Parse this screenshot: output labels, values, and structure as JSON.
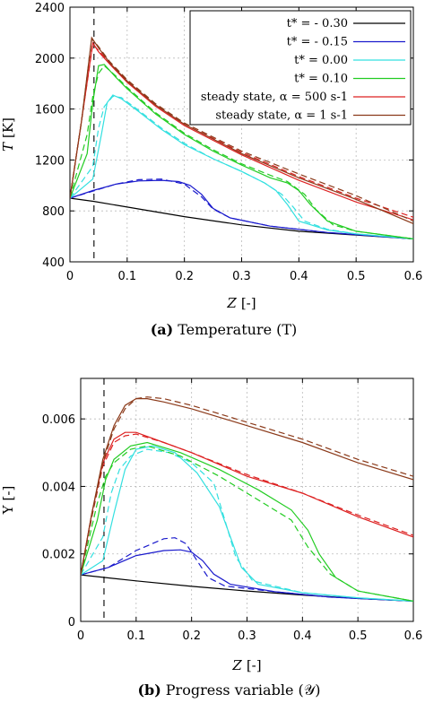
{
  "chart_data": [
    {
      "type": "line",
      "caption_tag": "(a)",
      "caption_text": "Temperature (T)",
      "xlabel": "Z",
      "xunit": "[-]",
      "ylabel": "T",
      "yunit": "[K]",
      "xlim": [
        0,
        0.6
      ],
      "ylim": [
        400,
        2400
      ],
      "xticks": [
        "0",
        "0.1",
        "0.2",
        "0.3",
        "0.4",
        "0.5",
        "0.6"
      ],
      "yticks": [
        "400",
        "800",
        "1200",
        "1600",
        "2000",
        "2400"
      ],
      "grid": true,
      "legend_position": "top-right",
      "vline": 0.042,
      "series": [
        {
          "name": "t* = - 0.30",
          "color": "#000000",
          "solid": {
            "x": [
              0,
              0.042,
              0.1,
              0.2,
              0.3,
              0.4,
              0.5,
              0.6
            ],
            "y": [
              900,
              875,
              830,
              755,
              690,
              640,
              610,
              580
            ]
          },
          "dashed": null
        },
        {
          "name": "t* = - 0.15",
          "color": "#1a1acc",
          "solid": {
            "x": [
              0,
              0.04,
              0.08,
              0.12,
              0.16,
              0.19,
              0.21,
              0.23,
              0.25,
              0.28,
              0.35,
              0.45,
              0.6
            ],
            "y": [
              900,
              960,
              1010,
              1035,
              1040,
              1030,
              1000,
              930,
              820,
              745,
              680,
              630,
              580
            ]
          },
          "dashed": {
            "x": [
              0,
              0.04,
              0.08,
              0.12,
              0.16,
              0.2,
              0.23,
              0.25,
              0.28,
              0.35,
              0.45,
              0.6
            ],
            "y": [
              900,
              955,
              1010,
              1045,
              1050,
              1010,
              910,
              815,
              745,
              680,
              630,
              580
            ]
          }
        },
        {
          "name": "t* = 0.00",
          "color": "#33e0e0",
          "solid": {
            "x": [
              0,
              0.04,
              0.055,
              0.065,
              0.075,
              0.09,
              0.12,
              0.16,
              0.2,
              0.25,
              0.3,
              0.34,
              0.36,
              0.38,
              0.4,
              0.45,
              0.5,
              0.6
            ],
            "y": [
              900,
              1050,
              1400,
              1650,
              1710,
              1680,
              1580,
              1440,
              1320,
              1210,
              1110,
              1020,
              960,
              850,
              720,
              650,
              620,
              580
            ]
          },
          "dashed": {
            "x": [
              0,
              0.04,
              0.05,
              0.06,
              0.075,
              0.09,
              0.12,
              0.16,
              0.2,
              0.25,
              0.3,
              0.34,
              0.37,
              0.39,
              0.41,
              0.45,
              0.5,
              0.6
            ],
            "y": [
              900,
              1150,
              1450,
              1620,
              1700,
              1690,
              1590,
              1450,
              1330,
              1210,
              1110,
              1020,
              930,
              830,
              720,
              655,
              620,
              580
            ]
          }
        },
        {
          "name": "t* = 0.10",
          "color": "#22cc22",
          "solid": {
            "x": [
              0,
              0.03,
              0.04,
              0.05,
              0.06,
              0.08,
              0.1,
              0.15,
              0.2,
              0.25,
              0.3,
              0.35,
              0.38,
              0.4,
              0.42,
              0.45,
              0.5,
              0.6
            ],
            "y": [
              900,
              1250,
              1650,
              1940,
              1950,
              1850,
              1760,
              1560,
              1400,
              1270,
              1160,
              1060,
              1020,
              960,
              850,
              720,
              640,
              580
            ]
          },
          "dashed": {
            "x": [
              0,
              0.03,
              0.04,
              0.05,
              0.06,
              0.08,
              0.1,
              0.15,
              0.2,
              0.25,
              0.3,
              0.35,
              0.38,
              0.41,
              0.43,
              0.46,
              0.5,
              0.6
            ],
            "y": [
              900,
              1400,
              1700,
              1880,
              1940,
              1860,
              1770,
              1570,
              1410,
              1280,
              1170,
              1080,
              1030,
              930,
              810,
              690,
              640,
              580
            ]
          }
        },
        {
          "name": "steady state, α = 500 s-1",
          "color": "#dd2222",
          "solid": {
            "x": [
              0,
              0.02,
              0.04,
              0.05,
              0.07,
              0.1,
              0.15,
              0.2,
              0.3,
              0.4,
              0.5,
              0.6
            ],
            "y": [
              900,
              1500,
              2120,
              2050,
              1950,
              1810,
              1620,
              1470,
              1240,
              1040,
              870,
              730
            ]
          },
          "dashed": {
            "x": [
              0,
              0.02,
              0.04,
              0.05,
              0.07,
              0.1,
              0.15,
              0.2,
              0.3,
              0.4,
              0.5,
              0.6
            ],
            "y": [
              900,
              1500,
              2110,
              2060,
              1960,
              1820,
              1630,
              1480,
              1260,
              1070,
              900,
              750
            ]
          }
        },
        {
          "name": "steady state, α = 1 s-1",
          "color": "#8b3a1a",
          "solid": {
            "x": [
              0,
              0.02,
              0.038,
              0.05,
              0.07,
              0.1,
              0.15,
              0.2,
              0.3,
              0.4,
              0.5,
              0.6
            ],
            "y": [
              900,
              1500,
              2160,
              2080,
              1960,
              1820,
              1630,
              1480,
              1250,
              1060,
              890,
              700
            ]
          },
          "dashed": {
            "x": [
              0,
              0.02,
              0.038,
              0.05,
              0.07,
              0.1,
              0.15,
              0.2,
              0.3,
              0.4,
              0.5,
              0.6
            ],
            "y": [
              900,
              1500,
              2150,
              2090,
              1970,
              1830,
              1640,
              1490,
              1270,
              1090,
              920,
              720
            ]
          }
        }
      ]
    },
    {
      "type": "line",
      "caption_tag": "(b)",
      "caption_text": "Progress variable (𝒴)",
      "xlabel": "Z",
      "xunit": "[-]",
      "ylabel": "Y",
      "yunit": "[-]",
      "xlim": [
        0,
        0.6
      ],
      "ylim": [
        0,
        0.0072
      ],
      "xticks": [
        "0",
        "0.1",
        "0.2",
        "0.3",
        "0.4",
        "0.5",
        "0.6"
      ],
      "yticks": [
        "0",
        "0.002",
        "0.004",
        "0.006"
      ],
      "ytick_values": [
        0,
        0.002,
        0.004,
        0.006
      ],
      "grid": true,
      "vline": 0.042,
      "series": [
        {
          "name": "t* = - 0.30",
          "color": "#000000",
          "solid": {
            "x": [
              0,
              0.1,
              0.2,
              0.3,
              0.4,
              0.5,
              0.6
            ],
            "y": [
              0.00138,
              0.0012,
              0.00104,
              0.0009,
              0.00078,
              0.00068,
              0.0006
            ]
          },
          "dashed": null
        },
        {
          "name": "t* = - 0.15",
          "color": "#1a1acc",
          "solid": {
            "x": [
              0,
              0.05,
              0.1,
              0.15,
              0.18,
              0.2,
              0.22,
              0.24,
              0.27,
              0.35,
              0.45,
              0.6
            ],
            "y": [
              0.00138,
              0.0016,
              0.00195,
              0.0021,
              0.00212,
              0.00205,
              0.0018,
              0.0014,
              0.0011,
              0.00088,
              0.00072,
              0.0006
            ]
          },
          "dashed": {
            "x": [
              0,
              0.05,
              0.1,
              0.15,
              0.17,
              0.19,
              0.21,
              0.23,
              0.26,
              0.35,
              0.45,
              0.6
            ],
            "y": [
              0.00138,
              0.0016,
              0.0021,
              0.00245,
              0.00248,
              0.0023,
              0.0018,
              0.0013,
              0.00105,
              0.00088,
              0.00072,
              0.0006
            ]
          }
        },
        {
          "name": "t* = 0.00",
          "color": "#33e0e0",
          "solid": {
            "x": [
              0,
              0.04,
              0.06,
              0.08,
              0.1,
              0.13,
              0.17,
              0.21,
              0.25,
              0.27,
              0.29,
              0.32,
              0.4,
              0.5,
              0.6
            ],
            "y": [
              0.00138,
              0.0018,
              0.0032,
              0.0045,
              0.0051,
              0.0052,
              0.005,
              0.0044,
              0.0034,
              0.0025,
              0.0016,
              0.0011,
              0.00085,
              0.0007,
              0.0006
            ]
          },
          "dashed": {
            "x": [
              0,
              0.04,
              0.055,
              0.07,
              0.09,
              0.12,
              0.16,
              0.2,
              0.24,
              0.26,
              0.28,
              0.31,
              0.4,
              0.5,
              0.6
            ],
            "y": [
              0.00138,
              0.0025,
              0.0038,
              0.0045,
              0.0049,
              0.0051,
              0.005,
              0.0047,
              0.0041,
              0.003,
              0.0019,
              0.0012,
              0.00085,
              0.0007,
              0.0006
            ]
          }
        },
        {
          "name": "t* = 0.10",
          "color": "#22cc22",
          "solid": {
            "x": [
              0,
              0.03,
              0.045,
              0.06,
              0.09,
              0.12,
              0.18,
              0.25,
              0.32,
              0.38,
              0.41,
              0.43,
              0.46,
              0.5,
              0.6
            ],
            "y": [
              0.00138,
              0.003,
              0.0042,
              0.0048,
              0.0052,
              0.0053,
              0.005,
              0.0045,
              0.0039,
              0.0033,
              0.0027,
              0.002,
              0.0013,
              0.0009,
              0.0006
            ]
          },
          "dashed": {
            "x": [
              0,
              0.03,
              0.045,
              0.06,
              0.09,
              0.12,
              0.18,
              0.25,
              0.32,
              0.38,
              0.41,
              0.45,
              0.5,
              0.6
            ],
            "y": [
              0.00138,
              0.0035,
              0.0043,
              0.0047,
              0.0051,
              0.0052,
              0.0049,
              0.0043,
              0.0036,
              0.003,
              0.0022,
              0.0014,
              0.0009,
              0.0006
            ]
          }
        },
        {
          "name": "steady state, α = 500 s-1",
          "color": "#dd2222",
          "solid": {
            "x": [
              0,
              0.02,
              0.04,
              0.06,
              0.08,
              0.1,
              0.15,
              0.2,
              0.3,
              0.4,
              0.5,
              0.6
            ],
            "y": [
              0.00138,
              0.0032,
              0.0047,
              0.0054,
              0.0056,
              0.0056,
              0.0053,
              0.005,
              0.0043,
              0.0038,
              0.0031,
              0.0025
            ]
          },
          "dashed": {
            "x": [
              0,
              0.02,
              0.04,
              0.06,
              0.08,
              0.1,
              0.15,
              0.2,
              0.3,
              0.4,
              0.5,
              0.6
            ],
            "y": [
              0.00138,
              0.0031,
              0.0046,
              0.0053,
              0.0055,
              0.00555,
              0.0053,
              0.005,
              0.00435,
              0.0038,
              0.00315,
              0.00255
            ]
          }
        },
        {
          "name": "steady state, α = 1 s-1",
          "color": "#8b3a1a",
          "solid": {
            "x": [
              0,
              0.02,
              0.04,
              0.06,
              0.08,
              0.1,
              0.12,
              0.15,
              0.2,
              0.3,
              0.4,
              0.5,
              0.6
            ],
            "y": [
              0.00138,
              0.0032,
              0.0048,
              0.0058,
              0.0064,
              0.0066,
              0.0066,
              0.0065,
              0.0063,
              0.0058,
              0.0053,
              0.0047,
              0.0042
            ]
          },
          "dashed": {
            "x": [
              0,
              0.02,
              0.04,
              0.06,
              0.08,
              0.1,
              0.12,
              0.15,
              0.2,
              0.3,
              0.4,
              0.5,
              0.6
            ],
            "y": [
              0.00138,
              0.0031,
              0.0047,
              0.0057,
              0.0063,
              0.0066,
              0.00665,
              0.0066,
              0.0064,
              0.0059,
              0.0054,
              0.0048,
              0.0043
            ]
          }
        }
      ]
    }
  ]
}
